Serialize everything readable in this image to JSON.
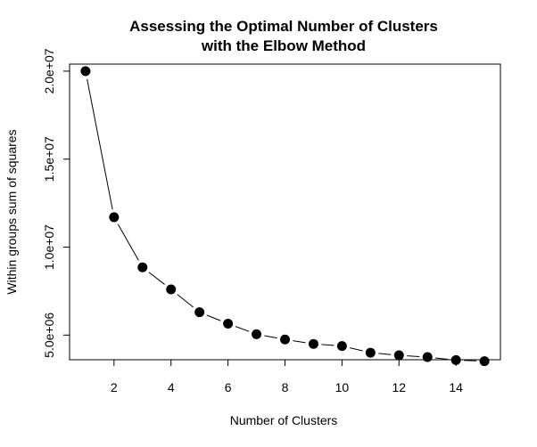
{
  "chart_data": {
    "type": "line",
    "title_line1": "Assessing the Optimal Number of Clusters",
    "title_line2": "with the Elbow Method",
    "xlabel": "Number of Clusters",
    "ylabel": "Within groups sum of squares",
    "xlim": [
      0.44,
      15.56
    ],
    "ylim": [
      3600000,
      20400000
    ],
    "x_ticks": [
      2,
      4,
      6,
      8,
      10,
      12,
      14
    ],
    "x_tick_labels": [
      "2",
      "4",
      "6",
      "8",
      "10",
      "12",
      "14"
    ],
    "y_ticks": [
      5000000,
      10000000,
      15000000,
      20000000
    ],
    "y_tick_labels": [
      "5.0e+06",
      "1.0e+07",
      "1.5e+07",
      "2.0e+07"
    ],
    "grid": false,
    "series": [
      {
        "x": [
          1,
          2,
          3,
          4,
          5,
          6,
          7,
          8,
          9,
          10,
          11,
          12,
          13,
          14,
          15
        ],
        "values": [
          20000000,
          11700000,
          8850000,
          7600000,
          6300000,
          5650000,
          5050000,
          4750000,
          4500000,
          4380000,
          4000000,
          3850000,
          3750000,
          3580000,
          3520000
        ]
      }
    ],
    "point_color": "#000000",
    "line_color": "#000000"
  }
}
